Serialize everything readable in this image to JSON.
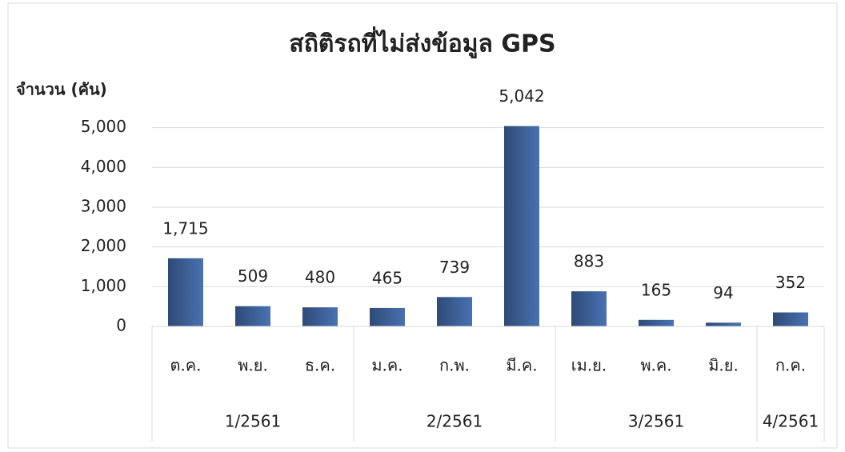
{
  "chart_data": {
    "type": "bar",
    "title": "สถิติรถที่ไม่ส่งข้อมูล GPS",
    "y_label": "จำนวน (คัน)",
    "groups": [
      {
        "name": "1/2561",
        "categories": [
          "ต.ค.",
          "พ.ย.",
          "ธ.ค."
        ],
        "values": [
          1715,
          509,
          480
        ],
        "value_labels": [
          "1,715",
          "509",
          "480"
        ]
      },
      {
        "name": "2/2561",
        "categories": [
          "ม.ค.",
          "ก.พ.",
          "มี.ค."
        ],
        "values": [
          465,
          739,
          5042
        ],
        "value_labels": [
          "465",
          "739",
          "5,042"
        ]
      },
      {
        "name": "3/2561",
        "categories": [
          "เม.ย.",
          "พ.ค.",
          "มิ.ย."
        ],
        "values": [
          883,
          165,
          94
        ],
        "value_labels": [
          "883",
          "165",
          "94"
        ]
      },
      {
        "name": "4/2561",
        "categories": [
          "ก.ค."
        ],
        "values": [
          352
        ],
        "value_labels": [
          "352"
        ]
      }
    ],
    "color": "#4a72b0",
    "ylim": [
      0,
      6000
    ],
    "yticks": [
      0,
      {
        "value": 1000,
        "label": "1,000"
      },
      {
        "value": 2000,
        "label": "2,000"
      },
      {
        "value": 3000,
        "label": "3,000"
      },
      {
        "value": 4000,
        "label": "4,000"
      },
      {
        "value": 5000,
        "label": "5,000"
      }
    ],
    "grid": true
  }
}
